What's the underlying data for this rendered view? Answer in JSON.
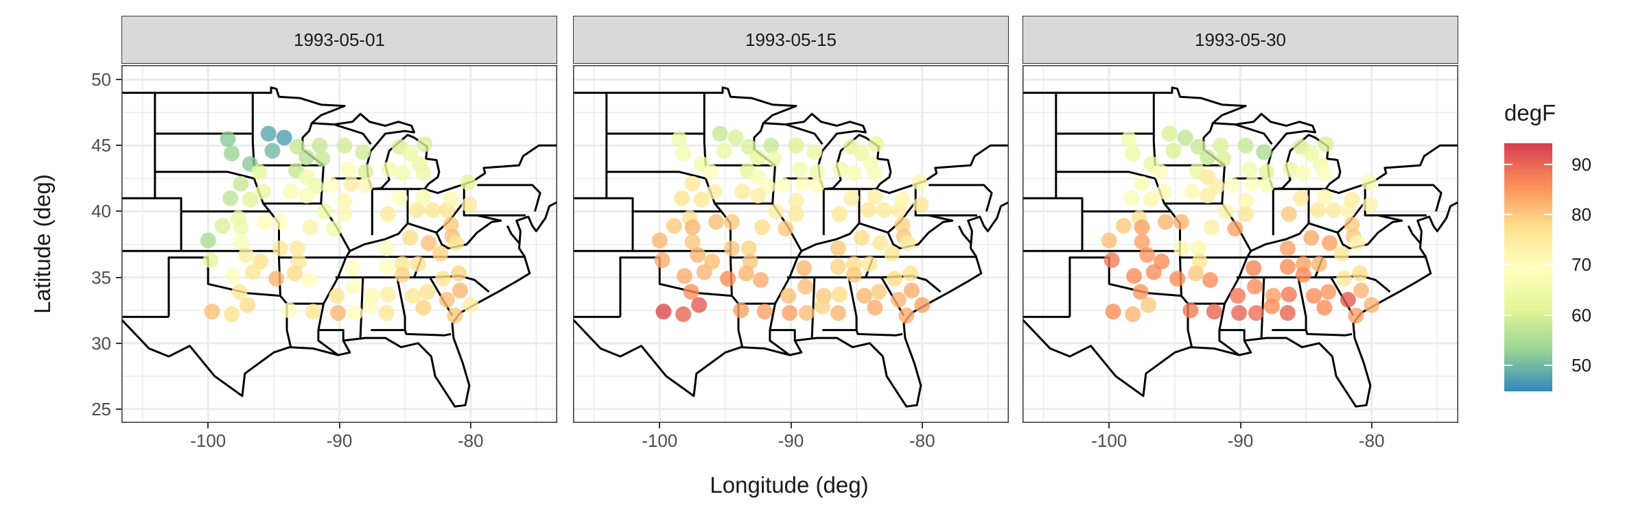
{
  "chart_data": {
    "type": "scatter",
    "subtype": "faceted map",
    "xlabel": "Longitude (deg)",
    "ylabel": "Latitude (deg)",
    "xlim": [
      -106.6,
      -73.4
    ],
    "ylim": [
      23.96,
      51.1
    ],
    "x_ticks": [
      "-100",
      "-90",
      "-80"
    ],
    "x_tick_values": [
      -100,
      -90,
      -80
    ],
    "y_ticks": [
      "25",
      "30",
      "35",
      "40",
      "45",
      "50"
    ],
    "y_tick_values": [
      25,
      30,
      35,
      40,
      45,
      50
    ],
    "grid": true,
    "legend": {
      "title": "degF",
      "placement": "right",
      "ticks": [
        "50",
        "60",
        "70",
        "80",
        "90"
      ],
      "tick_values": [
        50,
        60,
        70,
        80,
        90
      ],
      "range": [
        44.8,
        94.2
      ],
      "palette": [
        "#3288BD",
        "#99D594",
        "#E6F598",
        "#FFFFBF",
        "#FEE08B",
        "#FC8D59",
        "#D53E4F"
      ]
    },
    "stations": [
      [
        -98.5,
        45.5
      ],
      [
        -98.2,
        44.4
      ],
      [
        -95.4,
        45.9
      ],
      [
        -94.2,
        45.6
      ],
      [
        -95.1,
        44.6
      ],
      [
        -96.8,
        43.6
      ],
      [
        -93.2,
        44.9
      ],
      [
        -91.5,
        45.0
      ],
      [
        -89.6,
        45.0
      ],
      [
        -88.2,
        44.5
      ],
      [
        -92.5,
        44.1
      ],
      [
        -91.3,
        44.0
      ],
      [
        -93.3,
        43.1
      ],
      [
        -89.3,
        43.2
      ],
      [
        -88.0,
        43.0
      ],
      [
        -85.4,
        44.9
      ],
      [
        -83.5,
        45.1
      ],
      [
        -84.6,
        44.4
      ],
      [
        -83.9,
        43.6
      ],
      [
        -86.2,
        43.2
      ],
      [
        -85.2,
        42.9
      ],
      [
        -83.6,
        42.9
      ],
      [
        -80.2,
        42.2
      ],
      [
        -97.5,
        42.1
      ],
      [
        -98.3,
        41.0
      ],
      [
        -96.8,
        40.9
      ],
      [
        -96.1,
        43.0
      ],
      [
        -95.8,
        41.5
      ],
      [
        -92.5,
        42.6
      ],
      [
        -91.8,
        41.9
      ],
      [
        -93.7,
        41.5
      ],
      [
        -92.5,
        41.2
      ],
      [
        -90.6,
        42.0
      ],
      [
        -89.1,
        42.1
      ],
      [
        -88.0,
        42.0
      ],
      [
        -89.6,
        40.8
      ],
      [
        -89.6,
        39.8
      ],
      [
        -91.1,
        40.0
      ],
      [
        -90.4,
        38.7
      ],
      [
        -92.2,
        38.8
      ],
      [
        -95.7,
        39.2
      ],
      [
        -94.5,
        39.2
      ],
      [
        -97.7,
        39.5
      ],
      [
        -98.9,
        38.9
      ],
      [
        -97.5,
        38.8
      ],
      [
        -100.0,
        37.8
      ],
      [
        -97.5,
        37.7
      ],
      [
        -99.8,
        36.3
      ],
      [
        -97.1,
        36.7
      ],
      [
        -96.0,
        36.2
      ],
      [
        -94.5,
        37.2
      ],
      [
        -93.2,
        37.2
      ],
      [
        -93.1,
        36.2
      ],
      [
        -98.1,
        35.1
      ],
      [
        -96.6,
        35.4
      ],
      [
        -94.8,
        34.9
      ],
      [
        -93.4,
        35.3
      ],
      [
        -92.3,
        34.8
      ],
      [
        -97.6,
        33.9
      ],
      [
        -99.7,
        32.4
      ],
      [
        -98.2,
        32.2
      ],
      [
        -97.0,
        32.9
      ],
      [
        -93.8,
        32.5
      ],
      [
        -92.0,
        32.4
      ],
      [
        -90.2,
        33.6
      ],
      [
        -90.1,
        32.3
      ],
      [
        -88.8,
        32.3
      ],
      [
        -88.9,
        34.3
      ],
      [
        -89.0,
        35.7
      ],
      [
        -86.4,
        35.8
      ],
      [
        -86.4,
        37.2
      ],
      [
        -86.3,
        39.8
      ],
      [
        -85.4,
        41.0
      ],
      [
        -84.1,
        40.1
      ],
      [
        -82.9,
        40.1
      ],
      [
        -81.8,
        40.1
      ],
      [
        -80.1,
        40.5
      ],
      [
        -81.5,
        40.9
      ],
      [
        -83.6,
        41.1
      ],
      [
        -84.6,
        38.0
      ],
      [
        -83.2,
        37.6
      ],
      [
        -81.5,
        39.0
      ],
      [
        -81.4,
        38.1
      ],
      [
        -82.3,
        36.8
      ],
      [
        -81.1,
        37.6
      ],
      [
        -85.2,
        36.0
      ],
      [
        -84.0,
        36.0
      ],
      [
        -80.9,
        35.3
      ],
      [
        -82.1,
        34.9
      ],
      [
        -85.2,
        35.2
      ],
      [
        -87.5,
        33.6
      ],
      [
        -86.3,
        33.7
      ],
      [
        -86.4,
        32.3
      ],
      [
        -84.4,
        33.6
      ],
      [
        -83.3,
        33.9
      ],
      [
        -83.6,
        32.7
      ],
      [
        -80.8,
        34.0
      ],
      [
        -81.8,
        33.3
      ],
      [
        -80.0,
        32.9
      ],
      [
        -81.2,
        32.1
      ],
      [
        -87.6,
        32.8
      ]
    ],
    "facets": [
      {
        "date": "1993-05-01",
        "degF": [
          52,
          53,
          48,
          47,
          50,
          52,
          58,
          58,
          59,
          59,
          56,
          58,
          58,
          68,
          60,
          60,
          60,
          64,
          63,
          65,
          66,
          64,
          62,
          58,
          57,
          61,
          62,
          63,
          65,
          64,
          67,
          68,
          70,
          74,
          71,
          72,
          71,
          65,
          65,
          73,
          70,
          70,
          64,
          60,
          64,
          55,
          68,
          62,
          74,
          77,
          76,
          75,
          76,
          69,
          76,
          82,
          78,
          70,
          76,
          81,
          77,
          78,
          70,
          76,
          77,
          82,
          70,
          70,
          70,
          69,
          70,
          75,
          70,
          76,
          76,
          77,
          75,
          72,
          66,
          78,
          81,
          80,
          81,
          79,
          76,
          76,
          77,
          79,
          77,
          79,
          71,
          74,
          76,
          76,
          77,
          79,
          82,
          81,
          74,
          80,
          69
        ]
      },
      {
        "date": "1993-05-15",
        "degF": [
          65,
          66,
          58,
          60,
          64,
          65,
          60,
          58,
          60,
          64,
          62,
          64,
          62,
          66,
          65,
          62,
          62,
          64,
          66,
          65,
          67,
          68,
          72,
          76,
          77,
          76,
          70,
          74,
          68,
          70,
          75,
          74,
          69,
          70,
          70,
          74,
          75,
          74,
          80,
          78,
          81,
          80,
          77,
          80,
          82,
          82,
          80,
          83,
          82,
          81,
          80,
          79,
          80,
          83,
          82,
          86,
          82,
          83,
          86,
          93,
          90,
          91,
          84,
          84,
          81,
          84,
          81,
          81,
          82,
          79,
          80,
          76,
          74,
          76,
          75,
          74,
          76,
          72,
          74,
          78,
          76,
          79,
          80,
          76,
          74,
          78,
          76,
          77,
          78,
          80,
          80,
          78,
          82,
          82,
          80,
          83,
          83,
          82,
          84,
          83,
          79
        ]
      },
      {
        "date": "1993-05-30",
        "degF": [
          66,
          64,
          60,
          57,
          60,
          63,
          58,
          60,
          58,
          55,
          58,
          60,
          63,
          66,
          62,
          60,
          60,
          64,
          66,
          64,
          68,
          70,
          66,
          68,
          68,
          72,
          68,
          72,
          75,
          74,
          71,
          74,
          70,
          69,
          68,
          72,
          76,
          73,
          84,
          74,
          82,
          82,
          77,
          80,
          84,
          81,
          84,
          88,
          85,
          86,
          72,
          72,
          76,
          86,
          86,
          86,
          80,
          86,
          85,
          86,
          82,
          80,
          88,
          90,
          88,
          90,
          89,
          86,
          87,
          86,
          84,
          80,
          75,
          76,
          75,
          73,
          73,
          74,
          72,
          83,
          84,
          80,
          80,
          76,
          72,
          84,
          82,
          78,
          76,
          86,
          84,
          88,
          90,
          86,
          85,
          86,
          82,
          91,
          82,
          84,
          86
        ]
      }
    ]
  }
}
